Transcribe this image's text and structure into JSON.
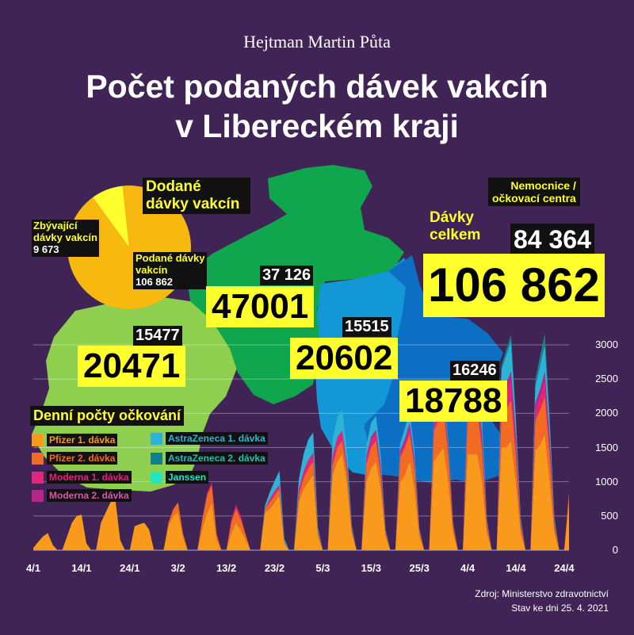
{
  "header": {
    "author": "Hejtman Martin Půta",
    "title_line1": "Počet podaných dávek vakcín",
    "title_line2": "v Libereckém kraji"
  },
  "colors": {
    "background": "#3f2455",
    "yellow": "#ffff2e",
    "region_light_green": "#8fcf4f",
    "region_green": "#0fa64d",
    "region_light_blue": "#1497d6",
    "region_blue": "#0d6fc4",
    "pie_used": "#f7b90f",
    "pie_remaining": "#ffff2e",
    "pfizer1": "#f99a1c",
    "pfizer2": "#f26b22",
    "moderna1": "#e6237a",
    "moderna2": "#b8258a",
    "az1": "#2db3d6",
    "az2": "#10808c",
    "janssen": "#22e6c0"
  },
  "pie": {
    "title": "Dodané dávky vakcín",
    "remaining_label_line1": "Zbývající",
    "remaining_label_line2": "dávky vakcín",
    "remaining_value": "9 673",
    "used_label_line1": "Podané dávky",
    "used_label_line2": "vakcín",
    "used_value": "106 862",
    "values": {
      "used": 106862,
      "remaining": 9673
    }
  },
  "totals": {
    "label_line1": "Dávky",
    "label_line2": "celkem",
    "total": "106 862",
    "centers_label_line1": "Nemocnice /",
    "centers_label_line2": "očkovací centra",
    "centers": "84 364"
  },
  "regions": [
    {
      "name": "west",
      "total": "20471",
      "sub": "15477"
    },
    {
      "name": "north",
      "total": "47001",
      "sub": "37 126"
    },
    {
      "name": "center",
      "total": "20602",
      "sub": "15515"
    },
    {
      "name": "east",
      "total": "18788",
      "sub": "16246"
    }
  ],
  "legend": {
    "title": "Denní počty očkování",
    "items": [
      {
        "label": "Pfizer 1. dávka",
        "color": "#f99a1c",
        "text_color": "#f99a1c"
      },
      {
        "label": "Pfizer 2. dávka",
        "color": "#f26b22",
        "text_color": "#f26b22"
      },
      {
        "label": "Moderna 1. dávka",
        "color": "#e6237a",
        "text_color": "#e6237a"
      },
      {
        "label": "Moderna 2. dávka",
        "color": "#b8258a",
        "text_color": "#e052b0"
      },
      {
        "label": "AstraZeneca 1. dávka",
        "color": "#2db3d6",
        "text_color": "#2db3d6"
      },
      {
        "label": "AstraZeneca 2. dávka",
        "color": "#10808c",
        "text_color": "#2bbdb0"
      },
      {
        "label": "Janssen",
        "color": "#22e6c0",
        "text_color": "#22e6c0"
      }
    ]
  },
  "source": {
    "line1": "Zdroj: Ministerstvo zdravotnictví",
    "line2": "Stav ke dni 25. 4. 2021"
  },
  "chart_data": {
    "type": "area",
    "title": "Denní počty očkování",
    "stacked": true,
    "xlabel": "",
    "ylabel": "",
    "ylim": [
      0,
      3000
    ],
    "yticks": [
      0,
      500,
      1000,
      1500,
      2000,
      2500,
      3000
    ],
    "xtick_labels": [
      "4/1",
      "14/1",
      "24/1",
      "3/2",
      "13/2",
      "23/2",
      "5/3",
      "15/3",
      "25/3",
      "4/4",
      "14/4",
      "24/4"
    ],
    "xtick_day_index": [
      0,
      10,
      20,
      30,
      40,
      50,
      60,
      70,
      80,
      90,
      100,
      110
    ],
    "num_days": 112,
    "series": [
      {
        "name": "Pfizer 1. dávka",
        "color": "#f99a1c",
        "values": [
          30,
          120,
          200,
          250,
          80,
          0,
          0,
          200,
          400,
          500,
          520,
          100,
          0,
          0,
          400,
          550,
          700,
          750,
          150,
          0,
          0,
          350,
          380,
          400,
          300,
          0,
          0,
          0,
          350,
          500,
          550,
          200,
          0,
          0,
          0,
          300,
          550,
          700,
          150,
          0,
          0,
          250,
          400,
          300,
          150,
          0,
          0,
          0,
          550,
          600,
          700,
          800,
          100,
          0,
          0,
          700,
          900,
          1000,
          1100,
          200,
          0,
          0,
          1100,
          1300,
          1400,
          1000,
          250,
          0,
          0,
          1000,
          1200,
          1300,
          900,
          200,
          0,
          0,
          1000,
          1100,
          1300,
          900,
          200,
          0,
          0,
          1300,
          1400,
          1500,
          1000,
          250,
          0,
          0,
          1400,
          1400,
          1400,
          1000,
          250,
          0,
          0,
          1500,
          1500,
          1600,
          1000,
          250,
          0,
          0,
          1450,
          1550,
          1700,
          1000,
          250,
          0,
          0,
          700
        ]
      },
      {
        "name": "Pfizer 2. dávka",
        "color": "#f26b22",
        "values": [
          0,
          0,
          0,
          0,
          0,
          0,
          0,
          0,
          0,
          0,
          0,
          0,
          0,
          0,
          0,
          0,
          0,
          0,
          0,
          0,
          0,
          0,
          0,
          0,
          0,
          0,
          0,
          0,
          50,
          100,
          150,
          50,
          0,
          0,
          0,
          150,
          250,
          250,
          80,
          0,
          0,
          150,
          200,
          150,
          80,
          0,
          0,
          0,
          50,
          100,
          100,
          100,
          20,
          0,
          0,
          100,
          150,
          200,
          200,
          50,
          0,
          0,
          150,
          200,
          200,
          150,
          40,
          0,
          0,
          250,
          300,
          300,
          200,
          50,
          0,
          0,
          350,
          400,
          400,
          300,
          80,
          0,
          0,
          450,
          500,
          550,
          400,
          100,
          0,
          0,
          550,
          600,
          650,
          450,
          100,
          0,
          0,
          500,
          550,
          600,
          400,
          100,
          0,
          0,
          450,
          500,
          550,
          400,
          100,
          0,
          0,
          150
        ]
      },
      {
        "name": "Moderna 1. dávka",
        "color": "#e6237a",
        "values": [
          0,
          0,
          0,
          0,
          0,
          0,
          0,
          0,
          0,
          0,
          0,
          0,
          0,
          0,
          0,
          0,
          0,
          0,
          0,
          0,
          0,
          0,
          0,
          0,
          0,
          0,
          0,
          0,
          0,
          0,
          0,
          0,
          0,
          0,
          0,
          0,
          30,
          40,
          0,
          0,
          0,
          40,
          60,
          40,
          0,
          0,
          0,
          0,
          0,
          50,
          60,
          60,
          0,
          0,
          0,
          80,
          100,
          120,
          120,
          20,
          0,
          0,
          120,
          150,
          150,
          100,
          20,
          0,
          0,
          100,
          120,
          120,
          90,
          20,
          0,
          0,
          60,
          80,
          100,
          80,
          10,
          0,
          0,
          80,
          100,
          120,
          80,
          20,
          0,
          0,
          200,
          250,
          250,
          150,
          40,
          0,
          0,
          250,
          300,
          300,
          180,
          50,
          0,
          0,
          150,
          200,
          250,
          160,
          40,
          0,
          0,
          0
        ]
      },
      {
        "name": "Moderna 2. dávka",
        "color": "#b8258a",
        "values": [
          0,
          0,
          0,
          0,
          0,
          0,
          0,
          0,
          0,
          0,
          0,
          0,
          0,
          0,
          0,
          0,
          0,
          0,
          0,
          0,
          0,
          0,
          0,
          0,
          0,
          0,
          0,
          0,
          0,
          0,
          0,
          0,
          0,
          0,
          0,
          0,
          0,
          0,
          0,
          0,
          0,
          0,
          0,
          0,
          0,
          0,
          0,
          0,
          0,
          0,
          0,
          0,
          0,
          0,
          0,
          0,
          0,
          0,
          0,
          0,
          0,
          0,
          0,
          0,
          0,
          0,
          0,
          0,
          0,
          30,
          40,
          40,
          30,
          0,
          0,
          0,
          40,
          50,
          60,
          40,
          0,
          0,
          0,
          60,
          70,
          80,
          50,
          10,
          0,
          0,
          80,
          100,
          100,
          70,
          10,
          0,
          0,
          90,
          100,
          110,
          80,
          10,
          0,
          0,
          90,
          100,
          110,
          70,
          10,
          0,
          0,
          0
        ]
      },
      {
        "name": "AstraZeneca 1. dávka",
        "color": "#2db3d6",
        "values": [
          0,
          0,
          0,
          0,
          0,
          0,
          0,
          0,
          0,
          0,
          0,
          0,
          0,
          0,
          0,
          0,
          0,
          0,
          0,
          0,
          0,
          0,
          0,
          0,
          0,
          0,
          0,
          0,
          0,
          0,
          0,
          0,
          0,
          0,
          0,
          0,
          0,
          0,
          0,
          0,
          0,
          0,
          0,
          0,
          0,
          0,
          0,
          0,
          50,
          100,
          150,
          200,
          50,
          0,
          0,
          150,
          250,
          300,
          300,
          60,
          0,
          0,
          250,
          300,
          300,
          200,
          50,
          0,
          0,
          150,
          200,
          200,
          150,
          30,
          0,
          0,
          100,
          150,
          150,
          120,
          30,
          0,
          0,
          80,
          100,
          100,
          80,
          20,
          0,
          0,
          150,
          250,
          300,
          200,
          50,
          0,
          0,
          300,
          400,
          450,
          250,
          60,
          0,
          0,
          250,
          350,
          400,
          250,
          60,
          0,
          0,
          0
        ]
      },
      {
        "name": "AstraZeneca 2. dávka",
        "color": "#10808c",
        "values": [
          0,
          0,
          0,
          0,
          0,
          0,
          0,
          0,
          0,
          0,
          0,
          0,
          0,
          0,
          0,
          0,
          0,
          0,
          0,
          0,
          0,
          0,
          0,
          0,
          0,
          0,
          0,
          0,
          0,
          0,
          0,
          0,
          0,
          0,
          0,
          0,
          0,
          0,
          0,
          0,
          0,
          0,
          0,
          0,
          0,
          0,
          0,
          0,
          0,
          0,
          0,
          0,
          0,
          0,
          0,
          0,
          0,
          0,
          0,
          0,
          0,
          0,
          0,
          0,
          0,
          0,
          0,
          0,
          0,
          0,
          0,
          0,
          0,
          0,
          0,
          0,
          0,
          0,
          0,
          0,
          0,
          0,
          0,
          0,
          0,
          0,
          0,
          0,
          0,
          0,
          20,
          30,
          30,
          20,
          0,
          0,
          0,
          60,
          80,
          90,
          50,
          10,
          0,
          0,
          80,
          100,
          120,
          60,
          10,
          0,
          0,
          0
        ]
      },
      {
        "name": "Janssen",
        "color": "#22e6c0",
        "values": [
          0,
          0,
          0,
          0,
          0,
          0,
          0,
          0,
          0,
          0,
          0,
          0,
          0,
          0,
          0,
          0,
          0,
          0,
          0,
          0,
          0,
          0,
          0,
          0,
          0,
          0,
          0,
          0,
          0,
          0,
          0,
          0,
          0,
          0,
          0,
          0,
          0,
          0,
          0,
          0,
          0,
          0,
          0,
          0,
          0,
          0,
          0,
          0,
          0,
          0,
          0,
          0,
          0,
          0,
          0,
          0,
          0,
          0,
          0,
          0,
          0,
          0,
          0,
          0,
          0,
          0,
          0,
          0,
          0,
          0,
          0,
          0,
          0,
          0,
          0,
          0,
          0,
          0,
          0,
          0,
          0,
          0,
          0,
          0,
          0,
          0,
          0,
          0,
          0,
          0,
          0,
          0,
          0,
          0,
          0,
          0,
          0,
          0,
          0,
          0,
          0,
          0,
          0,
          0,
          10,
          20,
          20,
          10,
          0,
          0,
          0,
          0
        ]
      }
    ]
  }
}
